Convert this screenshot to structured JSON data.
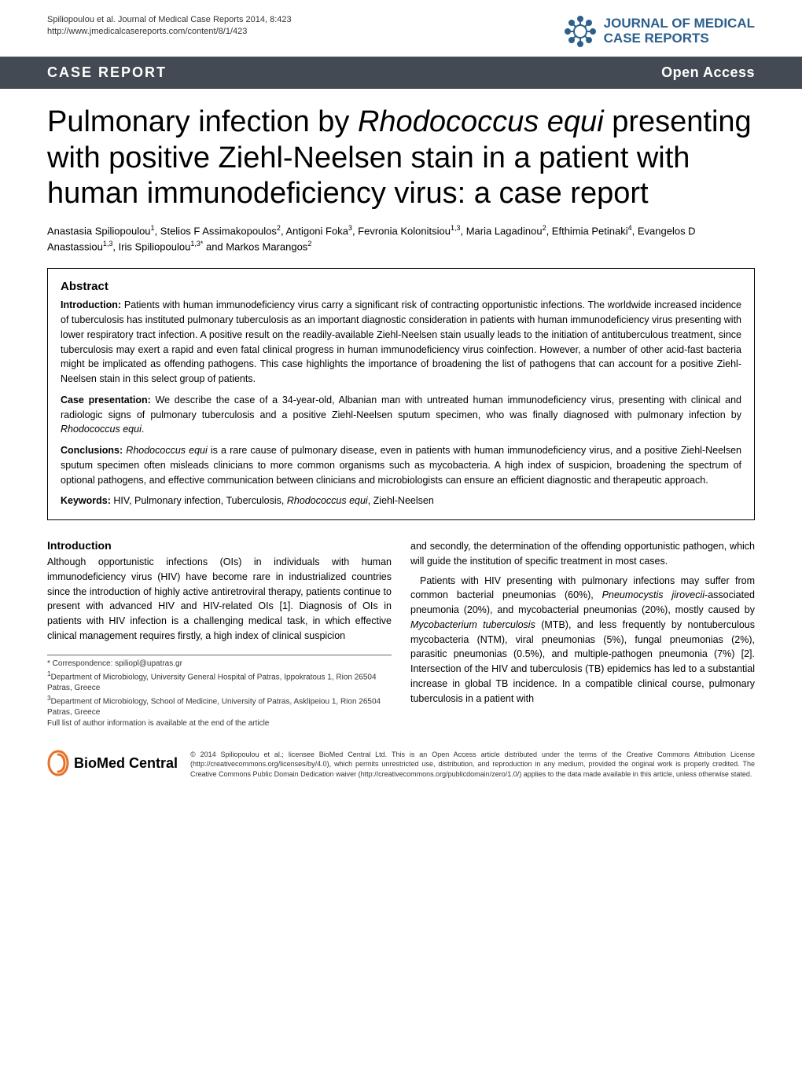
{
  "header": {
    "citation": "Spiliopoulou et al. Journal of Medical Case Reports 2014, 8:423",
    "url": "http://www.jmedicalcasereports.com/content/8/1/423",
    "journal_name_line1": "JOURNAL OF MEDICAL",
    "journal_name_line2": "CASE REPORTS",
    "logo_color": "#2c5f8d"
  },
  "banner": {
    "left": "CASE REPORT",
    "right": "Open Access",
    "bg_color": "#434a54",
    "text_color": "#ffffff"
  },
  "title": "Pulmonary infection by Rhodococcus equi presenting with positive Ziehl-Neelsen stain in a patient with human immunodeficiency virus: a case report",
  "authors_html": "Anastasia Spiliopoulou<sup>1</sup>, Stelios F Assimakopoulos<sup>2</sup>, Antigoni Foka<sup>3</sup>, Fevronia Kolonitsiou<sup>1,3</sup>, Maria Lagadinou<sup>2</sup>, Efthimia Petinaki<sup>4</sup>, Evangelos D Anastassiou<sup>1,3</sup>, Iris Spiliopoulou<sup>1,3*</sup> and Markos Marangos<sup>2</sup>",
  "abstract": {
    "heading": "Abstract",
    "intro_label": "Introduction:",
    "intro": " Patients with human immunodeficiency virus carry a significant risk of contracting opportunistic infections. The worldwide increased incidence of tuberculosis has instituted pulmonary tuberculosis as an important diagnostic consideration in patients with human immunodeficiency virus presenting with lower respiratory tract infection. A positive result on the readily-available Ziehl-Neelsen stain usually leads to the initiation of antituberculous treatment, since tuberculosis may exert a rapid and even fatal clinical progress in human immunodeficiency virus coinfection. However, a number of other acid-fast bacteria might be implicated as offending pathogens. This case highlights the importance of broadening the list of pathogens that can account for a positive Ziehl-Neelsen stain in this select group of patients.",
    "case_label": "Case presentation:",
    "case": " We describe the case of a 34-year-old, Albanian man with untreated human immunodeficiency virus, presenting with clinical and radiologic signs of pulmonary tuberculosis and a positive Ziehl-Neelsen sputum specimen, who was finally diagnosed with pulmonary infection by Rhodococcus equi.",
    "conclusions_label": "Conclusions:",
    "conclusions": " Rhodococcus equi is a rare cause of pulmonary disease, even in patients with human immunodeficiency virus, and a positive Ziehl-Neelsen sputum specimen often misleads clinicians to more common organisms such as mycobacteria. A high index of suspicion, broadening the spectrum of optional pathogens, and effective communication between clinicians and microbiologists can ensure an efficient diagnostic and therapeutic approach.",
    "keywords_label": "Keywords:",
    "keywords": " HIV, Pulmonary infection, Tuberculosis, Rhodococcus equi, Ziehl-Neelsen"
  },
  "body": {
    "intro_heading": "Introduction",
    "col1_p1": "Although opportunistic infections (OIs) in individuals with human immunodeficiency virus (HIV) have become rare in industrialized countries since the introduction of highly active antiretroviral therapy, patients continue to present with advanced HIV and HIV-related OIs [1]. Diagnosis of OIs in patients with HIV infection is a challenging medical task, in which effective clinical management requires firstly, a high index of clinical suspicion",
    "col2_p1": "and secondly, the determination of the offending opportunistic pathogen, which will guide the institution of specific treatment in most cases.",
    "col2_p2": "Patients with HIV presenting with pulmonary infections may suffer from common bacterial pneumonias (60%), Pneumocystis jirovecii-associated pneumonia (20%), and mycobacterial pneumonias (20%), mostly caused by Mycobacterium tuberculosis (MTB), and less frequently by nontuberculous mycobacteria (NTM), viral pneumonias (5%), fungal pneumonias (2%), parasitic pneumonias (0.5%), and multiple-pathogen pneumonia (7%) [2]. Intersection of the HIV and tuberculosis (TB) epidemics has led to a substantial increase in global TB incidence. In a compatible clinical course, pulmonary tuberculosis in a patient with"
  },
  "footnotes": {
    "correspondence": "* Correspondence: spiliopl@upatras.gr",
    "aff1": "1Department of Microbiology, University General Hospital of Patras, Ippokratous 1, Rion 26504 Patras, Greece",
    "aff3": "3Department of Microbiology, School of Medicine, University of Patras, Asklipeiou 1, Rion 26504 Patras, Greece",
    "full_list": "Full list of author information is available at the end of the article"
  },
  "footer": {
    "biomed_name": "BioMed Central",
    "biomed_color": "#e67128",
    "license": "© 2014 Spiliopoulou et al.; licensee BioMed Central Ltd. This is an Open Access article distributed under the terms of the Creative Commons Attribution License (http://creativecommons.org/licenses/by/4.0), which permits unrestricted use, distribution, and reproduction in any medium, provided the original work is properly credited. The Creative Commons Public Domain Dedication waiver (http://creativecommons.org/publicdomain/zero/1.0/) applies to the data made available in this article, unless otherwise stated."
  }
}
